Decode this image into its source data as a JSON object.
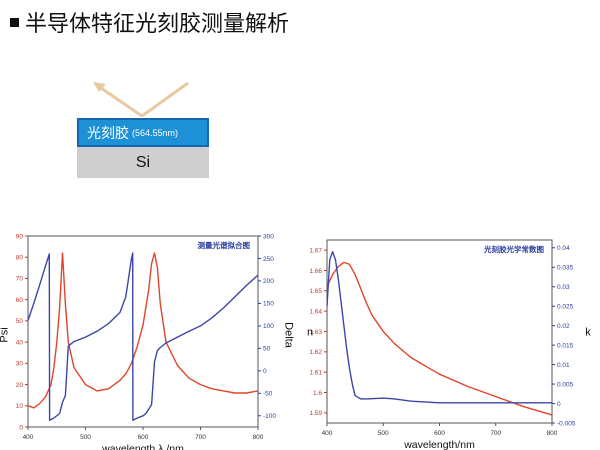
{
  "slide": {
    "title": "半导体特征光刻胶测量解析"
  },
  "diagram": {
    "photoresist_label": "光刻胶",
    "photoresist_thickness": "(564.55nm)",
    "substrate_label": "Si"
  },
  "colors": {
    "psi": "#e0452a",
    "delta": "#3c46a8",
    "n": "#e0452a",
    "k": "#3c46a8",
    "axis_left": "#c0392b",
    "axis_right": "#2c3e9e"
  },
  "chart_data": [
    {
      "type": "line",
      "title": "测量光谱拟合图",
      "xlabel": "wavelength λ /nm",
      "ylabel": "Psi",
      "y2label": "Delta",
      "xlim": [
        400,
        800
      ],
      "ylim": [
        0,
        90
      ],
      "y2lim": [
        -125,
        300
      ],
      "xticks": [
        400,
        500,
        600,
        700,
        800
      ],
      "yticks": [
        0,
        10,
        20,
        30,
        40,
        50,
        60,
        70,
        80,
        90
      ],
      "y2ticks": [
        -100,
        -50,
        0,
        50,
        100,
        150,
        200,
        250,
        300
      ],
      "series": [
        {
          "axis": "left",
          "x": [
            400,
            410,
            420,
            430,
            440,
            445,
            450,
            455,
            460,
            465,
            470,
            480,
            500,
            520,
            540,
            560,
            570,
            580,
            590,
            600,
            610,
            615,
            620,
            625,
            630,
            640,
            660,
            680,
            700,
            720,
            740,
            760,
            780,
            800
          ],
          "y": [
            10,
            9,
            11,
            14,
            20,
            28,
            40,
            56,
            82,
            58,
            40,
            28,
            20,
            17,
            18,
            22,
            25,
            30,
            38,
            48,
            65,
            77,
            82,
            75,
            58,
            40,
            29,
            23,
            20,
            18,
            17,
            16,
            16,
            17
          ]
        },
        {
          "axis": "right",
          "x": [
            400,
            410,
            420,
            430,
            437,
            437.5,
            445,
            455,
            460,
            465,
            470,
            480,
            500,
            520,
            540,
            560,
            570,
            580,
            582,
            582.5,
            590,
            600,
            605,
            610,
            615,
            620,
            625,
            630,
            640,
            660,
            680,
            700,
            720,
            740,
            760,
            780,
            800
          ],
          "y": [
            112,
            150,
            190,
            232,
            260,
            -110,
            -105,
            -95,
            -70,
            -55,
            55,
            65,
            75,
            88,
            105,
            130,
            165,
            250,
            262,
            -110,
            -105,
            -100,
            -95,
            -85,
            -75,
            20,
            45,
            52,
            62,
            75,
            88,
            100,
            118,
            140,
            165,
            190,
            213
          ]
        }
      ]
    },
    {
      "type": "line",
      "title": "光刻胶光学常数图",
      "xlabel": "wavelength/nm",
      "ylabel": "n",
      "y2label": "k",
      "xlim": [
        400,
        800
      ],
      "ylim": [
        1.585,
        1.675
      ],
      "y2lim": [
        -0.005,
        0.042
      ],
      "xticks": [
        400,
        500,
        600,
        700,
        800
      ],
      "yticks": [
        1.59,
        1.6,
        1.61,
        1.62,
        1.63,
        1.64,
        1.65,
        1.66,
        1.67
      ],
      "y2ticks": [
        -0.005,
        0,
        0.005,
        0.01,
        0.015,
        0.02,
        0.025,
        0.03,
        0.035,
        0.04
      ],
      "series": [
        {
          "axis": "left",
          "x": [
            400,
            410,
            420,
            430,
            440,
            450,
            460,
            470,
            480,
            500,
            520,
            550,
            600,
            650,
            700,
            750,
            800
          ],
          "y": [
            1.652,
            1.658,
            1.662,
            1.664,
            1.663,
            1.658,
            1.651,
            1.644,
            1.638,
            1.63,
            1.624,
            1.617,
            1.609,
            1.603,
            1.598,
            1.593,
            1.589
          ]
        },
        {
          "axis": "right",
          "x": [
            400,
            405,
            410,
            415,
            420,
            425,
            430,
            435,
            440,
            445,
            450,
            460,
            470,
            500,
            520,
            550,
            600,
            650,
            700,
            800
          ],
          "y": [
            0.025,
            0.037,
            0.039,
            0.037,
            0.032,
            0.026,
            0.02,
            0.014,
            0.009,
            0.005,
            0.002,
            0.0012,
            0.0012,
            0.0014,
            0.0012,
            0.0006,
            0.0002,
            0.0002,
            0.0002,
            0.0002
          ]
        }
      ]
    }
  ]
}
